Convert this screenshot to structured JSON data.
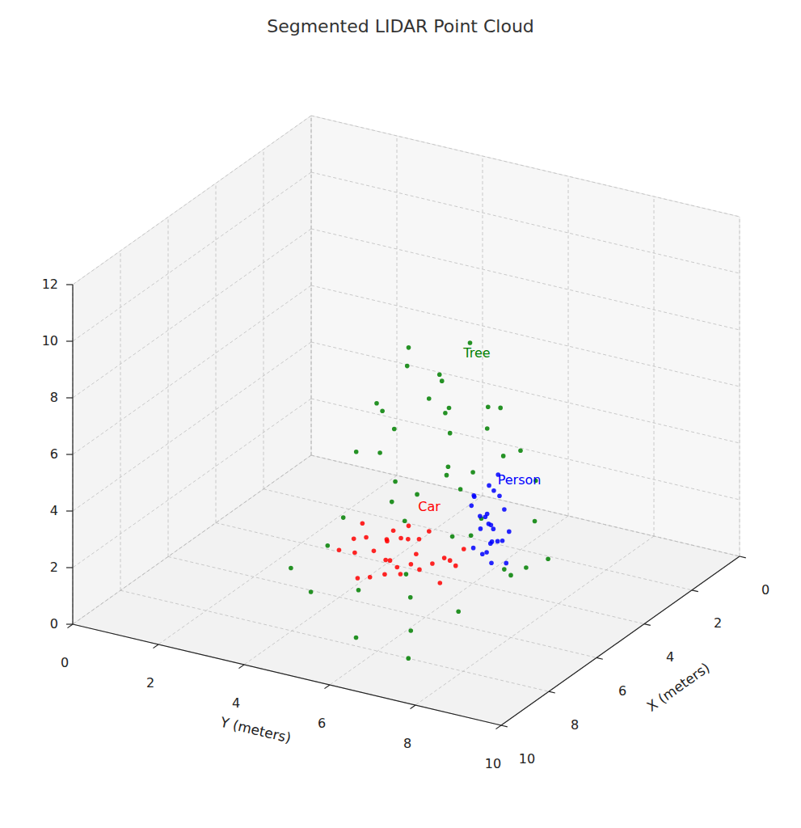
{
  "chart_data": {
    "type": "scatter3d",
    "title": "Segmented LIDAR Point Cloud",
    "x_label": "X (meters)",
    "y_label": "Y (meters)",
    "xlim": [
      0,
      10
    ],
    "ylim": [
      0,
      10
    ],
    "zlim": [
      0,
      12
    ],
    "xticks": [
      0,
      2,
      4,
      6,
      8,
      10
    ],
    "yticks": [
      0,
      2,
      4,
      6,
      8,
      10
    ],
    "zticks": [
      0,
      2,
      4,
      6,
      8,
      10,
      12
    ],
    "grid": true,
    "series": [
      {
        "name": "Tree",
        "color": "#008000",
        "marker": "circle",
        "label_x": 3.5,
        "label_y": 5.5,
        "label_z": 7.5,
        "x": [
          4.5,
          4.0,
          5.0,
          3.5,
          4.8,
          3.2,
          5.5,
          4.2,
          6.0,
          3.0,
          4.6,
          5.2,
          3.8,
          2.5,
          6.5,
          4.4,
          5.8,
          3.6,
          4.9,
          2.8,
          6.2,
          4.1,
          5.4,
          3.3,
          4.7,
          6.8,
          2.2,
          5.0,
          3.9,
          5.6,
          7.0,
          4.3,
          6.4,
          7.5,
          5.9,
          8.0,
          7.2,
          3.0,
          6.6,
          8.5,
          4.8,
          5.3,
          3.7,
          2.0,
          6.0,
          3.4,
          5.6
        ],
        "y": [
          5.5,
          4.5,
          6.0,
          5.0,
          6.8,
          6.2,
          5.0,
          4.0,
          6.5,
          4.8,
          5.8,
          4.5,
          6.6,
          5.5,
          5.5,
          3.5,
          7.2,
          5.2,
          5.2,
          6.8,
          4.2,
          7.5,
          6.3,
          3.8,
          4.8,
          6.0,
          5.0,
          7.8,
          5.9,
          3.5,
          5.0,
          6.9,
          7.0,
          6.5,
          5.6,
          5.5,
          4.0,
          7.2,
          3.2,
          7.0,
          4.2,
          5.7,
          4.3,
          6.0,
          8.0,
          5.6,
          6.6
        ],
        "z": [
          7.5,
          7.8,
          6.8,
          6.5,
          7.0,
          5.8,
          6.0,
          5.5,
          5.2,
          5.0,
          5.6,
          4.8,
          4.6,
          4.4,
          4.2,
          4.0,
          3.8,
          3.6,
          3.4,
          3.2,
          3.0,
          2.8,
          2.6,
          2.4,
          2.2,
          2.0,
          2.5,
          1.8,
          1.6,
          1.4,
          1.2,
          1.0,
          0.8,
          0.6,
          0.5,
          0.3,
          0.9,
          0.7,
          1.1,
          0.4,
          6.2,
          7.2,
          6.9,
          3.5,
          2.2,
          8.0,
          4.5
        ]
      },
      {
        "name": "Car",
        "color": "#ff0000",
        "marker": "circle",
        "label_x": 4.5,
        "label_y": 5.0,
        "label_z": 2.5,
        "x": [
          4.2,
          4.5,
          4.8,
          5.1,
          5.3,
          4.6,
          5.0,
          5.5,
          4.4,
          5.2,
          4.9,
          5.6,
          4.1,
          5.4,
          4.7,
          5.8,
          4.3,
          5.1,
          4.6,
          5.7,
          4.9,
          5.3,
          4.0,
          5.9,
          4.8,
          5.0,
          4.5,
          5.6,
          4.2,
          5.2
        ],
        "y": [
          4.1,
          4.6,
          5.0,
          4.3,
          5.4,
          5.8,
          3.8,
          4.8,
          5.2,
          5.9,
          4.5,
          5.2,
          4.8,
          4.0,
          3.9,
          4.6,
          5.5,
          5.1,
          4.4,
          5.7,
          6.1,
          3.6,
          4.5,
          5.0,
          5.5,
          4.7,
          3.7,
          4.2,
          5.9,
          4.9
        ],
        "z": [
          1.0,
          1.4,
          0.8,
          1.2,
          1.6,
          1.1,
          0.9,
          1.3,
          1.8,
          0.7,
          1.5,
          1.0,
          1.2,
          1.7,
          1.3,
          0.8,
          0.9,
          1.9,
          0.6,
          1.4,
          1.2,
          1.1,
          1.5,
          1.1,
          1.0,
          2.0,
          1.6,
          0.5,
          1.3,
          0.9
        ]
      },
      {
        "name": "Person",
        "color": "#0000ff",
        "marker": "circle",
        "label_x": 3.5,
        "label_y": 6.3,
        "label_z": 3.3,
        "x": [
          3.4,
          3.6,
          3.3,
          3.5,
          3.7,
          3.4,
          3.6,
          3.5,
          3.2,
          3.8,
          3.3,
          3.7,
          3.5,
          3.4,
          3.6,
          3.3,
          3.8,
          3.5,
          3.4,
          3.6,
          3.2,
          3.7,
          3.5,
          3.6,
          3.3
        ],
        "y": [
          6.1,
          6.0,
          6.3,
          5.9,
          6.2,
          6.4,
          5.8,
          6.1,
          6.0,
          6.3,
          5.9,
          6.0,
          6.5,
          5.7,
          6.4,
          6.2,
          5.9,
          6.2,
          6.0,
          6.1,
          6.4,
          5.8,
          6.3,
          6.2,
          6.1
        ],
        "z": [
          0.4,
          0.8,
          1.2,
          1.6,
          2.0,
          2.4,
          2.8,
          3.2,
          1.0,
          1.4,
          1.9,
          2.2,
          0.6,
          2.6,
          3.0,
          3.5,
          1.1,
          1.7,
          2.1,
          0.9,
          1.5,
          2.5,
          1.3,
          1.9,
          2.9
        ]
      }
    ]
  }
}
